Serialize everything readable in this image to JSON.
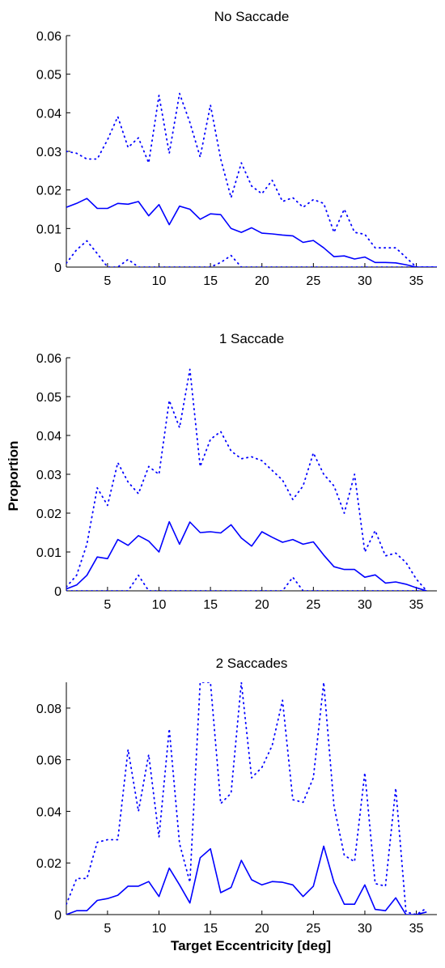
{
  "ylabel": "Proportion",
  "xlabel": "Target Eccentricity [deg]",
  "line_color": "#0000ff",
  "chart_data": [
    {
      "type": "line",
      "title": "No Saccade",
      "xlim": [
        1,
        37
      ],
      "ylim": [
        0,
        0.06
      ],
      "xticks": [
        5,
        10,
        15,
        20,
        25,
        30,
        35
      ],
      "yticks": [
        0,
        0.01,
        0.02,
        0.03,
        0.04,
        0.05,
        0.06
      ],
      "ytick_labels": [
        "0",
        "0.01",
        "0.02",
        "0.03",
        "0.04",
        "0.05",
        "0.06"
      ],
      "series": [
        {
          "style": "solid",
          "x": [
            1,
            2,
            3,
            4,
            5,
            6,
            7,
            8,
            9,
            10,
            11,
            12,
            13,
            14,
            15,
            16,
            17,
            18,
            19,
            20,
            21,
            22,
            23,
            24,
            25,
            26,
            27,
            28,
            29,
            30,
            31,
            32,
            33,
            34,
            35,
            36,
            37
          ],
          "y": [
            0.0155,
            0.0165,
            0.0178,
            0.0152,
            0.0152,
            0.0165,
            0.0163,
            0.017,
            0.0133,
            0.0162,
            0.011,
            0.0158,
            0.015,
            0.0124,
            0.0138,
            0.0136,
            0.01,
            0.009,
            0.0102,
            0.0088,
            0.0086,
            0.0083,
            0.0081,
            0.0064,
            0.0069,
            0.005,
            0.0027,
            0.0029,
            0.0021,
            0.0026,
            0.0012,
            0.0012,
            0.0011,
            0.0006,
            0,
            0,
            0
          ]
        },
        {
          "style": "dotted",
          "x": [
            1,
            2,
            3,
            4,
            5,
            6,
            7,
            8,
            9,
            10,
            11,
            12,
            13,
            14,
            15,
            16,
            17,
            18,
            19,
            20,
            21,
            22,
            23,
            24,
            25,
            26,
            27,
            28,
            29,
            30,
            31,
            32,
            33,
            34,
            35,
            36,
            37
          ],
          "y": [
            0.03,
            0.0295,
            0.028,
            0.028,
            0.033,
            0.039,
            0.031,
            0.0335,
            0.027,
            0.0445,
            0.0295,
            0.045,
            0.0375,
            0.0285,
            0.042,
            0.028,
            0.018,
            0.027,
            0.021,
            0.019,
            0.0225,
            0.017,
            0.018,
            0.0155,
            0.0175,
            0.0165,
            0.009,
            0.015,
            0.009,
            0.0085,
            0.005,
            0.005,
            0.005,
            0.0025,
            0,
            0,
            0
          ]
        },
        {
          "style": "dotted",
          "x": [
            1,
            2,
            3,
            4,
            5,
            6,
            7,
            8,
            9,
            10,
            11,
            12,
            13,
            14,
            15,
            16,
            17,
            18,
            19,
            20,
            21,
            22,
            23,
            24,
            25,
            26,
            27,
            28,
            29,
            30,
            31,
            32,
            33,
            34,
            35,
            36,
            37
          ],
          "y": [
            0.001,
            0.0045,
            0.0068,
            0.0035,
            0,
            0,
            0.002,
            0,
            0,
            0,
            0,
            0,
            0,
            0,
            0,
            0.0012,
            0.003,
            0,
            0,
            0,
            0,
            0,
            0,
            0,
            0,
            0,
            0,
            0,
            0,
            0,
            0,
            0,
            0,
            0,
            0,
            0,
            0
          ]
        }
      ]
    },
    {
      "type": "line",
      "title": "1 Saccade",
      "xlim": [
        1,
        37
      ],
      "ylim": [
        0,
        0.06
      ],
      "xticks": [
        5,
        10,
        15,
        20,
        25,
        30,
        35
      ],
      "yticks": [
        0,
        0.01,
        0.02,
        0.03,
        0.04,
        0.05,
        0.06
      ],
      "ytick_labels": [
        "0",
        "0.01",
        "0.02",
        "0.03",
        "0.04",
        "0.05",
        "0.06"
      ],
      "series": [
        {
          "style": "solid",
          "x": [
            1,
            2,
            3,
            4,
            5,
            6,
            7,
            8,
            9,
            10,
            11,
            12,
            13,
            14,
            15,
            16,
            17,
            18,
            19,
            20,
            21,
            22,
            23,
            24,
            25,
            26,
            27,
            28,
            29,
            30,
            31,
            32,
            33,
            34,
            35,
            36
          ],
          "y": [
            0.0005,
            0.0015,
            0.004,
            0.0087,
            0.0083,
            0.0132,
            0.0117,
            0.0142,
            0.0128,
            0.01,
            0.0178,
            0.012,
            0.0177,
            0.015,
            0.0152,
            0.0149,
            0.017,
            0.0136,
            0.0115,
            0.0152,
            0.0138,
            0.0125,
            0.0132,
            0.012,
            0.0126,
            0.0092,
            0.0062,
            0.0055,
            0.0055,
            0.0035,
            0.0041,
            0.002,
            0.0023,
            0.0017,
            0.0008,
            0
          ]
        },
        {
          "style": "dotted",
          "x": [
            1,
            2,
            3,
            4,
            5,
            6,
            7,
            8,
            9,
            10,
            11,
            12,
            13,
            14,
            15,
            16,
            17,
            18,
            19,
            20,
            21,
            22,
            23,
            24,
            25,
            26,
            27,
            28,
            29,
            30,
            31,
            32,
            33,
            34,
            35,
            36
          ],
          "y": [
            0.001,
            0.004,
            0.012,
            0.0265,
            0.022,
            0.033,
            0.028,
            0.025,
            0.032,
            0.03,
            0.049,
            0.042,
            0.057,
            0.032,
            0.039,
            0.041,
            0.036,
            0.034,
            0.0345,
            0.0335,
            0.031,
            0.0285,
            0.0235,
            0.027,
            0.0355,
            0.03,
            0.027,
            0.02,
            0.03,
            0.01,
            0.0155,
            0.009,
            0.0097,
            0.0073,
            0.003,
            0
          ]
        },
        {
          "style": "dotted",
          "x": [
            1,
            2,
            3,
            4,
            5,
            6,
            7,
            8,
            9,
            10,
            11,
            12,
            13,
            14,
            15,
            16,
            17,
            18,
            19,
            20,
            21,
            22,
            23,
            24,
            25,
            26,
            27,
            28,
            29,
            30,
            31,
            32,
            33,
            34,
            35,
            36
          ],
          "y": [
            0,
            0,
            0,
            0,
            0,
            0,
            0,
            0.004,
            0,
            0,
            0,
            0,
            0,
            0,
            0,
            0,
            0,
            0,
            0,
            0,
            0,
            0,
            0.0035,
            0,
            0,
            0,
            0,
            0,
            0,
            0,
            0,
            0,
            0,
            0,
            0,
            0
          ]
        }
      ]
    },
    {
      "type": "line",
      "title": "2 Saccades",
      "xlim": [
        1,
        37
      ],
      "ylim": [
        0,
        0.09
      ],
      "xticks": [
        5,
        10,
        15,
        20,
        25,
        30,
        35
      ],
      "yticks": [
        0,
        0.02,
        0.04,
        0.06,
        0.08
      ],
      "ytick_labels": [
        "0",
        "0.02",
        "0.04",
        "0.06",
        "0.08"
      ],
      "series": [
        {
          "style": "solid",
          "x": [
            1,
            2,
            3,
            4,
            5,
            6,
            7,
            8,
            9,
            10,
            11,
            12,
            13,
            14,
            15,
            16,
            17,
            18,
            19,
            20,
            21,
            22,
            23,
            24,
            25,
            26,
            27,
            28,
            29,
            30,
            31,
            32,
            33,
            34,
            35,
            36
          ],
          "y": [
            0,
            0.0015,
            0.0015,
            0.0055,
            0.0062,
            0.0075,
            0.011,
            0.011,
            0.0128,
            0.007,
            0.018,
            0.0115,
            0.0045,
            0.022,
            0.0255,
            0.0085,
            0.0105,
            0.021,
            0.0135,
            0.0115,
            0.0128,
            0.0125,
            0.0115,
            0.007,
            0.011,
            0.0265,
            0.0125,
            0.004,
            0.004,
            0.0115,
            0.002,
            0.0015,
            0.0065,
            0,
            0,
            0.001
          ]
        },
        {
          "style": "dotted",
          "x": [
            1,
            2,
            3,
            4,
            5,
            6,
            7,
            8,
            9,
            10,
            11,
            12,
            13,
            14,
            15,
            16,
            17,
            18,
            19,
            20,
            21,
            22,
            23,
            24,
            25,
            26,
            27,
            28,
            29,
            30,
            31,
            32,
            33,
            34,
            35,
            36
          ],
          "y": [
            0.004,
            0.014,
            0.014,
            0.028,
            0.029,
            0.029,
            0.064,
            0.04,
            0.062,
            0.03,
            0.072,
            0.0275,
            0.0125,
            0.09,
            0.09,
            0.043,
            0.047,
            0.09,
            0.053,
            0.057,
            0.0655,
            0.083,
            0.0445,
            0.0435,
            0.053,
            0.09,
            0.042,
            0.023,
            0.0205,
            0.055,
            0.012,
            0.011,
            0.049,
            0.001,
            0,
            0.0025
          ]
        }
      ]
    }
  ]
}
